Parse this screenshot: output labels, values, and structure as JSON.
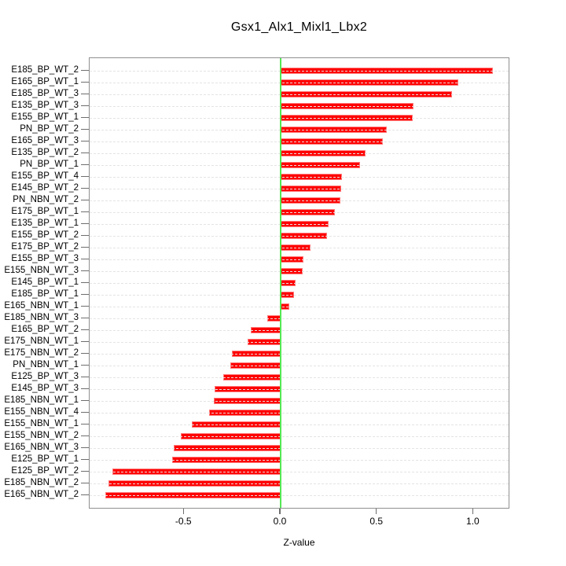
{
  "title": "Gsx1_Alx1_Mixl1_Lbx2",
  "xlabel": "Z-value",
  "colors": {
    "bar_fill": "#ff0000",
    "bar_border": "#ff7b7b",
    "zero_line": "#54e854",
    "grid_line": "#e4e4e4",
    "frame": "#8f8f8f",
    "tick": "#6e6e6e",
    "text": "#000000"
  },
  "chart_data": {
    "type": "bar",
    "orientation": "horizontal",
    "title": "Gsx1_Alx1_Mixl1_Lbx2",
    "xlabel": "Z-value",
    "ylabel": "",
    "xlim": [
      -0.99,
      1.19
    ],
    "xticks": [
      -0.5,
      0.0,
      0.5,
      1.0
    ],
    "xtick_labels": [
      "-0.5",
      "0.0",
      "0.5",
      "1.0"
    ],
    "grid": "dashed-horizontal-per-bar",
    "zero_reference_line": 0,
    "legend": "none",
    "categories": [
      "E185_BP_WT_2",
      "E165_BP_WT_1",
      "E185_BP_WT_3",
      "E135_BP_WT_3",
      "E155_BP_WT_1",
      "PN_BP_WT_2",
      "E165_BP_WT_3",
      "E135_BP_WT_2",
      "PN_BP_WT_1",
      "E155_BP_WT_4",
      "E145_BP_WT_2",
      "PN_NBN_WT_2",
      "E175_BP_WT_1",
      "E135_BP_WT_1",
      "E155_BP_WT_2",
      "E175_BP_WT_2",
      "E155_BP_WT_3",
      "E155_NBN_WT_3",
      "E145_BP_WT_1",
      "E185_BP_WT_1",
      "E165_NBN_WT_1",
      "E185_NBN_WT_3",
      "E165_BP_WT_2",
      "E175_NBN_WT_1",
      "E175_NBN_WT_2",
      "PN_NBN_WT_1",
      "E125_BP_WT_3",
      "E145_BP_WT_3",
      "E185_NBN_WT_1",
      "E155_NBN_WT_4",
      "E155_NBN_WT_1",
      "E155_NBN_WT_2",
      "E165_NBN_WT_3",
      "E125_BP_WT_1",
      "E125_BP_WT_2",
      "E185_NBN_WT_2",
      "E165_NBN_WT_2"
    ],
    "values": [
      1.1,
      0.92,
      0.89,
      0.69,
      0.685,
      0.55,
      0.53,
      0.44,
      0.41,
      0.32,
      0.315,
      0.31,
      0.28,
      0.25,
      0.24,
      0.155,
      0.12,
      0.115,
      0.077,
      0.07,
      0.043,
      -0.071,
      -0.153,
      -0.17,
      -0.254,
      -0.26,
      -0.297,
      -0.342,
      -0.345,
      -0.371,
      -0.462,
      -0.516,
      -0.553,
      -0.563,
      -0.87,
      -0.893,
      -0.907
    ]
  }
}
